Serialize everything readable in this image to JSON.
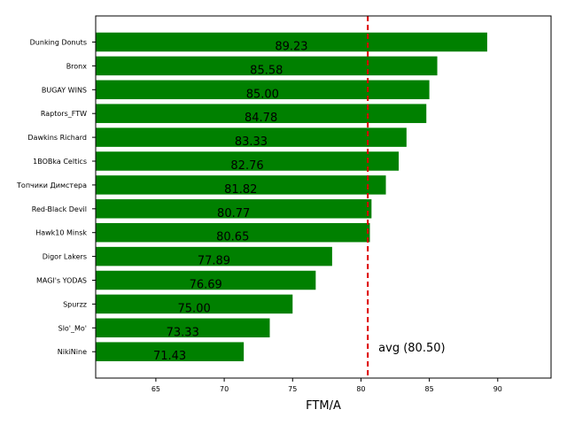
{
  "chart_data": {
    "type": "bar",
    "orientation": "horizontal",
    "title": "",
    "xlabel": "FTM/A",
    "ylabel": "",
    "xlim": [
      60.6,
      93.9
    ],
    "xticks": [
      65,
      70,
      75,
      80,
      85,
      90
    ],
    "grid": false,
    "bar_color": "#008000",
    "categories": [
      "Dunking Donuts",
      "Bronx",
      "BUGAY WINS",
      "Raptors_FTW",
      "Dawkins Richard",
      "1BOBka Celtics",
      "Топчики Димстера",
      "Red-Black Devil",
      "Hawk10 Minsk",
      "Digor Lakers",
      "MAGI's YODAS",
      "Spurzz",
      "Slo'_Mo'",
      "NikiNine"
    ],
    "values": [
      89.23,
      85.58,
      85.0,
      84.78,
      83.33,
      82.76,
      81.82,
      80.77,
      80.65,
      77.89,
      76.69,
      75.0,
      73.33,
      71.43
    ],
    "value_labels": [
      "89.23",
      "85.58",
      "85.00",
      "84.78",
      "83.33",
      "82.76",
      "81.82",
      "80.77",
      "80.65",
      "77.89",
      "76.69",
      "75.00",
      "73.33",
      "71.43"
    ],
    "reference_line": {
      "value": 80.5,
      "label": "avg (80.50)",
      "color": "#dd0000",
      "style": "dashed"
    }
  }
}
